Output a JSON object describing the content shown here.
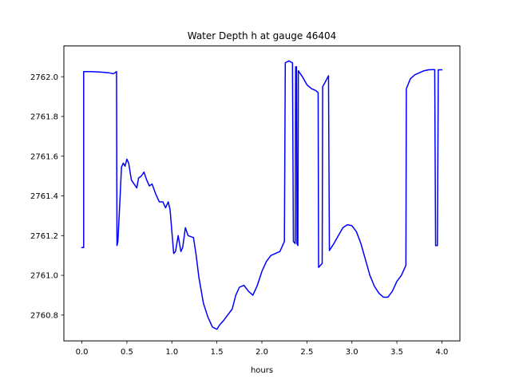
{
  "chart_data": {
    "type": "line",
    "title": "Water Depth h at gauge 46404",
    "xlabel": "hours",
    "ylabel": "",
    "xlim": [
      -0.2,
      4.2
    ],
    "ylim": [
      2760.67,
      2762.155
    ],
    "xticks": [
      {
        "value": 0.0,
        "label": "0.0"
      },
      {
        "value": 0.5,
        "label": "0.5"
      },
      {
        "value": 1.0,
        "label": "1.0"
      },
      {
        "value": 1.5,
        "label": "1.5"
      },
      {
        "value": 2.0,
        "label": "2.0"
      },
      {
        "value": 2.5,
        "label": "2.5"
      },
      {
        "value": 3.0,
        "label": "3.0"
      },
      {
        "value": 3.5,
        "label": "3.5"
      },
      {
        "value": 4.0,
        "label": "4.0"
      }
    ],
    "yticks": [
      {
        "value": 2760.8,
        "label": "2760.8"
      },
      {
        "value": 2761.0,
        "label": "2761.0"
      },
      {
        "value": 2761.2,
        "label": "2761.2"
      },
      {
        "value": 2761.4,
        "label": "2761.4"
      },
      {
        "value": 2761.6,
        "label": "2761.6"
      },
      {
        "value": 2761.8,
        "label": "2761.8"
      },
      {
        "value": 2762.0,
        "label": "2762.0"
      }
    ],
    "grid": false,
    "series": [
      {
        "color": "#0000ff",
        "points": [
          [
            0.0,
            2761.14
          ],
          [
            0.02,
            2761.14
          ],
          [
            0.02,
            2762.026
          ],
          [
            0.1,
            2762.026
          ],
          [
            0.2,
            2762.024
          ],
          [
            0.3,
            2762.02
          ],
          [
            0.35,
            2762.015
          ],
          [
            0.385,
            2762.026
          ],
          [
            0.39,
            2761.15
          ],
          [
            0.4,
            2761.17
          ],
          [
            0.42,
            2761.35
          ],
          [
            0.44,
            2761.545
          ],
          [
            0.46,
            2761.565
          ],
          [
            0.48,
            2761.55
          ],
          [
            0.5,
            2761.585
          ],
          [
            0.52,
            2761.565
          ],
          [
            0.55,
            2761.48
          ],
          [
            0.58,
            2761.46
          ],
          [
            0.61,
            2761.44
          ],
          [
            0.63,
            2761.49
          ],
          [
            0.66,
            2761.5
          ],
          [
            0.69,
            2761.52
          ],
          [
            0.72,
            2761.48
          ],
          [
            0.75,
            2761.45
          ],
          [
            0.78,
            2761.46
          ],
          [
            0.82,
            2761.41
          ],
          [
            0.86,
            2761.37
          ],
          [
            0.9,
            2761.37
          ],
          [
            0.93,
            2761.34
          ],
          [
            0.96,
            2761.37
          ],
          [
            0.98,
            2761.33
          ],
          [
            1.0,
            2761.22
          ],
          [
            1.02,
            2761.11
          ],
          [
            1.04,
            2761.12
          ],
          [
            1.07,
            2761.2
          ],
          [
            1.1,
            2761.12
          ],
          [
            1.12,
            2761.14
          ],
          [
            1.15,
            2761.24
          ],
          [
            1.18,
            2761.2
          ],
          [
            1.21,
            2761.195
          ],
          [
            1.24,
            2761.19
          ],
          [
            1.27,
            2761.1
          ],
          [
            1.3,
            2760.99
          ],
          [
            1.35,
            2760.86
          ],
          [
            1.4,
            2760.79
          ],
          [
            1.45,
            2760.74
          ],
          [
            1.5,
            2760.728
          ],
          [
            1.53,
            2760.75
          ],
          [
            1.57,
            2760.77
          ],
          [
            1.62,
            2760.8
          ],
          [
            1.67,
            2760.83
          ],
          [
            1.71,
            2760.9
          ],
          [
            1.75,
            2760.94
          ],
          [
            1.8,
            2760.95
          ],
          [
            1.85,
            2760.92
          ],
          [
            1.9,
            2760.9
          ],
          [
            1.95,
            2760.95
          ],
          [
            2.0,
            2761.02
          ],
          [
            2.05,
            2761.07
          ],
          [
            2.1,
            2761.1
          ],
          [
            2.15,
            2761.11
          ],
          [
            2.2,
            2761.12
          ],
          [
            2.25,
            2761.17
          ],
          [
            2.26,
            2762.07
          ],
          [
            2.3,
            2762.08
          ],
          [
            2.34,
            2762.07
          ],
          [
            2.35,
            2761.17
          ],
          [
            2.37,
            2761.16
          ],
          [
            2.375,
            2762.05
          ],
          [
            2.385,
            2762.05
          ],
          [
            2.39,
            2761.16
          ],
          [
            2.4,
            2761.15
          ],
          [
            2.405,
            2762.03
          ],
          [
            2.45,
            2762.0
          ],
          [
            2.5,
            2761.96
          ],
          [
            2.55,
            2761.94
          ],
          [
            2.6,
            2761.93
          ],
          [
            2.625,
            2761.92
          ],
          [
            2.63,
            2761.04
          ],
          [
            2.67,
            2761.06
          ],
          [
            2.675,
            2761.95
          ],
          [
            2.7,
            2761.97
          ],
          [
            2.74,
            2762.005
          ],
          [
            2.75,
            2761.125
          ],
          [
            2.8,
            2761.16
          ],
          [
            2.85,
            2761.2
          ],
          [
            2.9,
            2761.24
          ],
          [
            2.95,
            2761.255
          ],
          [
            3.0,
            2761.25
          ],
          [
            3.05,
            2761.22
          ],
          [
            3.1,
            2761.16
          ],
          [
            3.15,
            2761.08
          ],
          [
            3.2,
            2761.0
          ],
          [
            3.25,
            2760.945
          ],
          [
            3.3,
            2760.91
          ],
          [
            3.35,
            2760.89
          ],
          [
            3.4,
            2760.89
          ],
          [
            3.45,
            2760.92
          ],
          [
            3.5,
            2760.97
          ],
          [
            3.55,
            2761.0
          ],
          [
            3.6,
            2761.05
          ],
          [
            3.605,
            2761.94
          ],
          [
            3.65,
            2761.99
          ],
          [
            3.7,
            2762.01
          ],
          [
            3.75,
            2762.02
          ],
          [
            3.8,
            2762.03
          ],
          [
            3.85,
            2762.035
          ],
          [
            3.9,
            2762.036
          ],
          [
            3.92,
            2762.036
          ],
          [
            3.93,
            2761.15
          ],
          [
            3.95,
            2761.15
          ],
          [
            3.96,
            2762.035
          ],
          [
            4.0,
            2762.035
          ]
        ]
      }
    ]
  }
}
